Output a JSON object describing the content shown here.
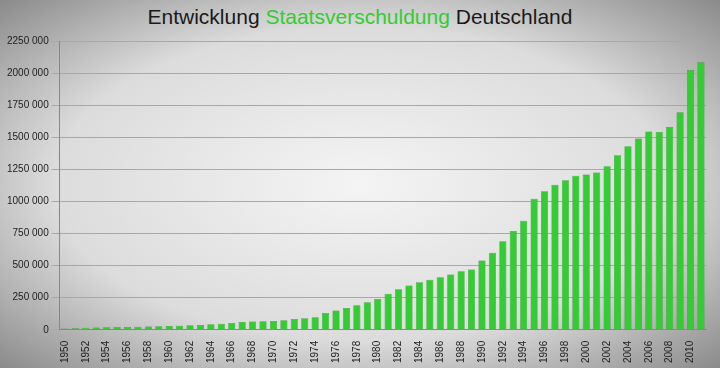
{
  "chart_data": {
    "type": "bar",
    "title": "Entwicklung Staatsverschuldung Deutschland",
    "categories": [
      "1950",
      null,
      "1952",
      null,
      "1954",
      null,
      "1956",
      null,
      "1958",
      null,
      "1960",
      null,
      "1962",
      null,
      "1964",
      null,
      "1966",
      null,
      "1968",
      null,
      "1970",
      null,
      "1972",
      null,
      "1974",
      null,
      "1976",
      null,
      "1978",
      null,
      "1980",
      null,
      "1982",
      null,
      "1984",
      null,
      "1986",
      null,
      "1988",
      null,
      "1990",
      null,
      "1992",
      null,
      "1994",
      null,
      "1996",
      null,
      "1998",
      null,
      "2000",
      null,
      "2002",
      null,
      "2004",
      null,
      "2006",
      null,
      "2008",
      null,
      "2010",
      null
    ],
    "values": [
      10000,
      12000,
      15000,
      18000,
      20000,
      21000,
      22000,
      24000,
      26000,
      28000,
      30000,
      32000,
      35000,
      38000,
      42000,
      46000,
      52000,
      60000,
      65000,
      66000,
      68000,
      75000,
      83000,
      90000,
      98000,
      130000,
      150000,
      170000,
      190000,
      215000,
      240000,
      280000,
      315000,
      345000,
      370000,
      390000,
      410000,
      430000,
      455000,
      470000,
      540000,
      600000,
      690000,
      770000,
      850000,
      1020000,
      1080000,
      1130000,
      1165000,
      1200000,
      1210000,
      1225000,
      1275000,
      1360000,
      1430000,
      1490000,
      1545000,
      1540000,
      1580000,
      1695000,
      2025000,
      2085000
    ],
    "color": "#33cc33",
    "ylim": [
      0,
      2250000
    ],
    "yticks": [
      0,
      {
        "value": 250000,
        "label": "250 000"
      },
      {
        "value": 500000,
        "label": "500 000"
      },
      {
        "value": 750000,
        "label": "750 000"
      },
      {
        "value": 1000000,
        "label": "1000 000"
      },
      {
        "value": 1250000,
        "label": "1250 000"
      },
      {
        "value": 1500000,
        "label": "1500 000"
      },
      {
        "value": 1750000,
        "label": "1750 000"
      },
      {
        "value": 2000000,
        "label": "2000 000"
      },
      {
        "value": 2250000,
        "label": "2250 000"
      }
    ],
    "grid": true
  }
}
